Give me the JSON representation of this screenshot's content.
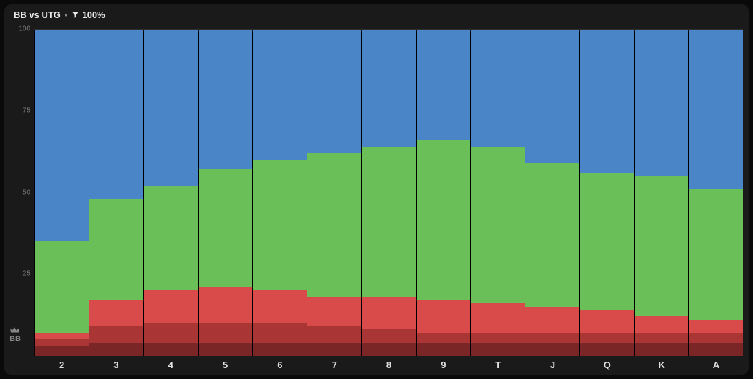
{
  "header": {
    "title": "BB vs UTG",
    "separator": "•",
    "filter_icon": "filter",
    "filter_value": "100%"
  },
  "left_badge": {
    "icon": "crown",
    "label": "BB"
  },
  "chart": {
    "type": "stacked-bar",
    "ylim": [
      0,
      100
    ],
    "yticks": [
      25,
      50,
      75,
      100
    ],
    "grid_color": "#2f2f2f",
    "background_color": "#1a1a1a",
    "bar_separator_color": "#000000",
    "label_color": "#e0e0e0",
    "ylabel_color": "#7a7a7a",
    "label_fontsize": 13,
    "ylabel_fontsize": 10,
    "categories": [
      "2",
      "3",
      "4",
      "5",
      "6",
      "7",
      "8",
      "9",
      "T",
      "J",
      "Q",
      "K",
      "A"
    ],
    "segment_order_bottom_to_top": [
      "raise_dark",
      "raise_mid",
      "raise_light",
      "call",
      "fold"
    ],
    "colors": {
      "raise_dark": "#7a2626",
      "raise_mid": "#a93535",
      "raise_light": "#d94a4a",
      "call": "#6bbf59",
      "fold": "#4a86c7"
    },
    "values": {
      "raise_dark": [
        3,
        4,
        4,
        4,
        4,
        4,
        4,
        4,
        4,
        4,
        4,
        4,
        4
      ],
      "raise_mid": [
        2,
        5,
        6,
        6,
        6,
        5,
        4,
        3,
        3,
        3,
        3,
        3,
        3
      ],
      "raise_light": [
        2,
        8,
        10,
        11,
        10,
        9,
        10,
        10,
        9,
        8,
        7,
        5,
        4
      ],
      "call": [
        28,
        31,
        32,
        36,
        40,
        44,
        46,
        49,
        48,
        44,
        42,
        43,
        40
      ],
      "fold": [
        65,
        52,
        48,
        43,
        40,
        38,
        36,
        34,
        36,
        41,
        44,
        45,
        49
      ]
    }
  }
}
